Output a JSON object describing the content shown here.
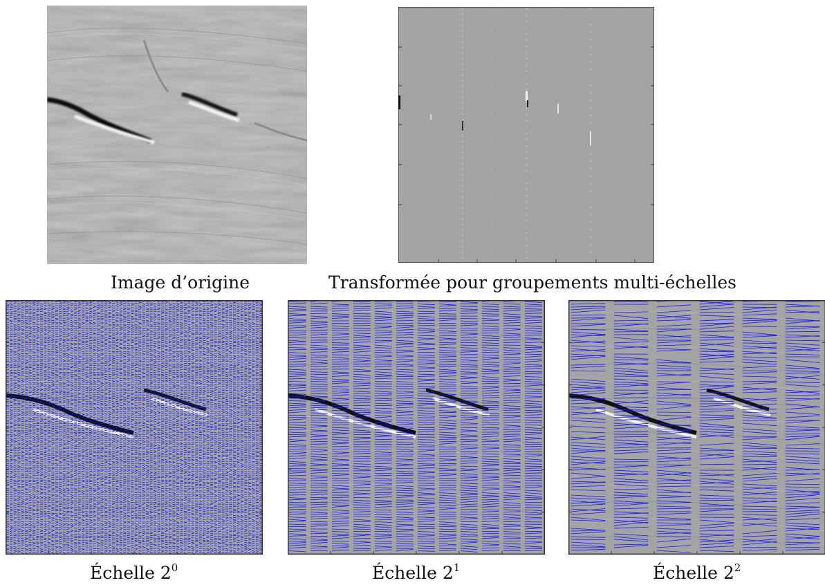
{
  "figure": {
    "top_row": [
      {
        "id": "original",
        "caption": "Image d’origine"
      },
      {
        "id": "transform",
        "caption": "Transformée pour groupements multi-échelles"
      }
    ],
    "bottom_row": [
      {
        "id": "scale0",
        "caption_prefix": "Échelle 2",
        "exponent": "0",
        "band_count": 68
      },
      {
        "id": "scale1",
        "caption_prefix": "Échelle 2",
        "exponent": "1",
        "band_count": 24
      },
      {
        "id": "scale2",
        "caption_prefix": "Échelle 2",
        "exponent": "2",
        "band_count": 12
      }
    ],
    "colors": {
      "vector_blue": "#1414ff",
      "field_gray": "#a4a4a4",
      "frame": "#333333"
    }
  }
}
